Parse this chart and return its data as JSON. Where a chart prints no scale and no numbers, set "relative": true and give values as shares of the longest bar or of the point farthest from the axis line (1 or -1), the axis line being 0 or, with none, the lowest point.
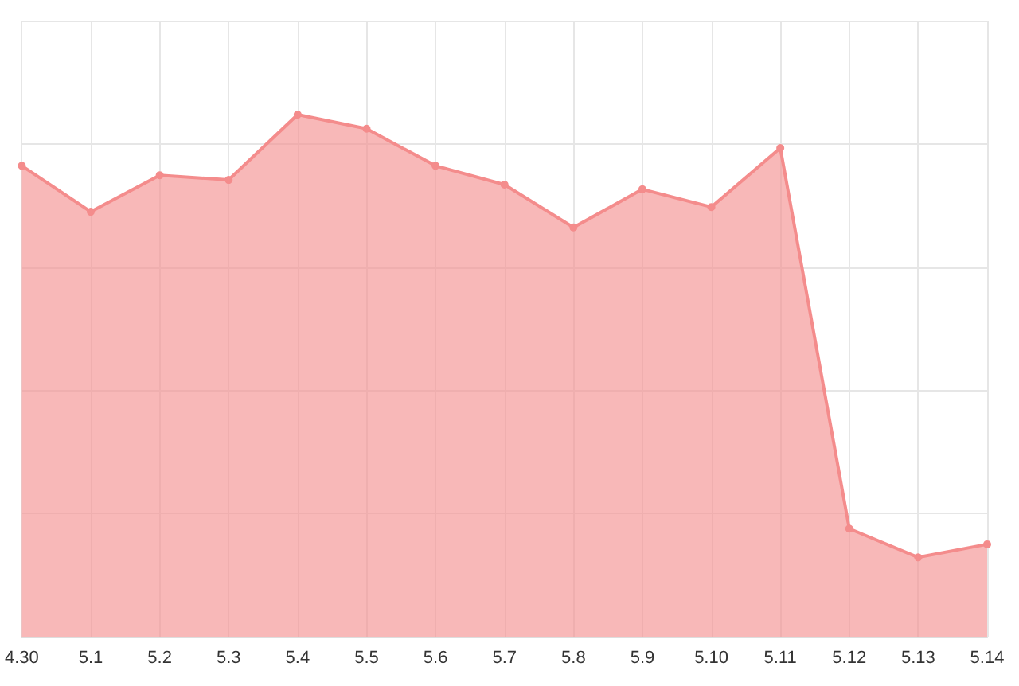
{
  "chart_data": {
    "type": "area",
    "relative": true,
    "categories": [
      "4.30",
      "5.1",
      "5.2",
      "5.3",
      "5.4",
      "5.5",
      "5.6",
      "5.7",
      "5.8",
      "5.9",
      "5.10",
      "5.11",
      "5.12",
      "5.13",
      "5.14"
    ],
    "series": [
      {
        "color": "#f48c8c",
        "values": [
          0.902,
          0.814,
          0.884,
          0.875,
          1,
          0.973,
          0.902,
          0.866,
          0.784,
          0.857,
          0.823,
          0.936,
          0.207,
          0.152,
          0.177
        ]
      }
    ],
    "grid": true,
    "marker": "circle",
    "tick_labels": "x"
  }
}
